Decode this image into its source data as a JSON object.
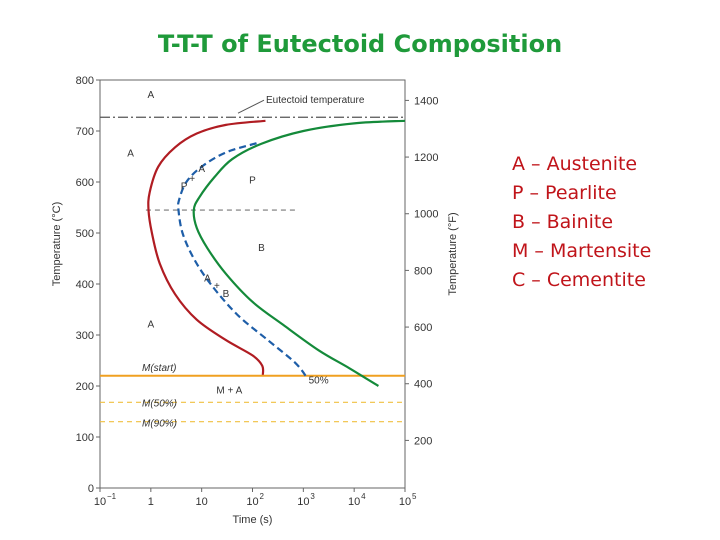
{
  "slide": {
    "title": "T-T-T of Eutectoid Composition",
    "legend": [
      "A – Austenite",
      "P – Pearlite",
      "B – Bainite",
      "M – Martensite",
      "C – Cementite"
    ],
    "colors": {
      "title": "#1f9a3a",
      "legend": "#c0141a"
    }
  },
  "chart_data": {
    "type": "line",
    "title": "",
    "xlabel": "Time (s)",
    "ylabel": "Temperature (°C)",
    "y2label": "Temperature (°F)",
    "xscale": "log",
    "xlim": [
      0.1,
      100000
    ],
    "ylim": [
      0,
      800
    ],
    "x_ticks": [
      "10",
      "1",
      "10",
      "10",
      "10",
      "10",
      "10"
    ],
    "x_tick_exponents": [
      "−1",
      "",
      "",
      "2",
      "3",
      "4",
      "5"
    ],
    "x_tick_values": [
      0.1,
      1,
      10,
      100,
      1000,
      10000,
      100000
    ],
    "y_ticks": [
      0,
      100,
      200,
      300,
      400,
      500,
      600,
      700,
      800
    ],
    "y2_ticks": [
      200,
      400,
      600,
      800,
      1000,
      1200,
      1400
    ],
    "series": [
      {
        "color": "#b01c22",
        "style": "solid",
        "points": [
          [
            180,
            720
          ],
          [
            30,
            712
          ],
          [
            8,
            695
          ],
          [
            3,
            668
          ],
          [
            1.4,
            630
          ],
          [
            0.95,
            580
          ],
          [
            0.9,
            545
          ],
          [
            1.05,
            500
          ],
          [
            1.5,
            440
          ],
          [
            3,
            380
          ],
          [
            8,
            330
          ],
          [
            30,
            290
          ],
          [
            100,
            260
          ],
          [
            155,
            240
          ],
          [
            160,
            222
          ]
        ]
      },
      {
        "color": "#1e5ea8",
        "style": "dashed",
        "points": [
          [
            120,
            676
          ],
          [
            30,
            658
          ],
          [
            10,
            630
          ],
          [
            5,
            600
          ],
          [
            3.6,
            565
          ],
          [
            3.5,
            545
          ],
          [
            4.2,
            500
          ],
          [
            7,
            450
          ],
          [
            15,
            400
          ],
          [
            50,
            340
          ],
          [
            200,
            290
          ],
          [
            700,
            245
          ],
          [
            1200,
            215
          ]
        ]
      },
      {
        "color": "#148a3a",
        "style": "solid",
        "points": [
          [
            100000,
            720
          ],
          [
            10000,
            715
          ],
          [
            1000,
            700
          ],
          [
            150,
            675
          ],
          [
            40,
            645
          ],
          [
            18,
            610
          ],
          [
            9,
            570
          ],
          [
            7,
            545
          ],
          [
            8,
            510
          ],
          [
            13,
            470
          ],
          [
            30,
            420
          ],
          [
            100,
            365
          ],
          [
            400,
            320
          ],
          [
            2000,
            270
          ],
          [
            8000,
            235
          ],
          [
            30000,
            200
          ]
        ]
      }
    ],
    "reference_lines": [
      {
        "y": 727,
        "label": "Eutectoid temperature",
        "style": "dash-dot",
        "color": "#555555"
      },
      {
        "y": 220,
        "label": "M(start)",
        "style": "solid",
        "color": "#f0a020"
      },
      {
        "y": 168,
        "label": "M(50%)",
        "style": "dashed",
        "color": "#f0c040"
      },
      {
        "y": 130,
        "label": "M(90%)",
        "style": "dashed",
        "color": "#f0c040"
      },
      {
        "y": 545,
        "label": "",
        "style": "dashed",
        "color": "#777777",
        "x_range": [
          0.8,
          800
        ]
      }
    ],
    "annotations": [
      {
        "text": "A",
        "x": 1,
        "y": 765
      },
      {
        "text": "A",
        "x": 0.4,
        "y": 650
      },
      {
        "text": "A",
        "x": 10,
        "y": 620
      },
      {
        "text": "P",
        "x": 4.5,
        "y": 585
      },
      {
        "text": "+",
        "x": 6.5,
        "y": 600
      },
      {
        "text": "P",
        "x": 100,
        "y": 597
      },
      {
        "text": "B",
        "x": 150,
        "y": 465
      },
      {
        "text": "A",
        "x": 13,
        "y": 405
      },
      {
        "text": "+",
        "x": 20,
        "y": 390
      },
      {
        "text": "B",
        "x": 30,
        "y": 375
      },
      {
        "text": "A",
        "x": 1,
        "y": 315
      },
      {
        "text": "M + A",
        "x": 35,
        "y": 185
      },
      {
        "text": "50%",
        "x": 2000,
        "y": 205
      }
    ]
  }
}
